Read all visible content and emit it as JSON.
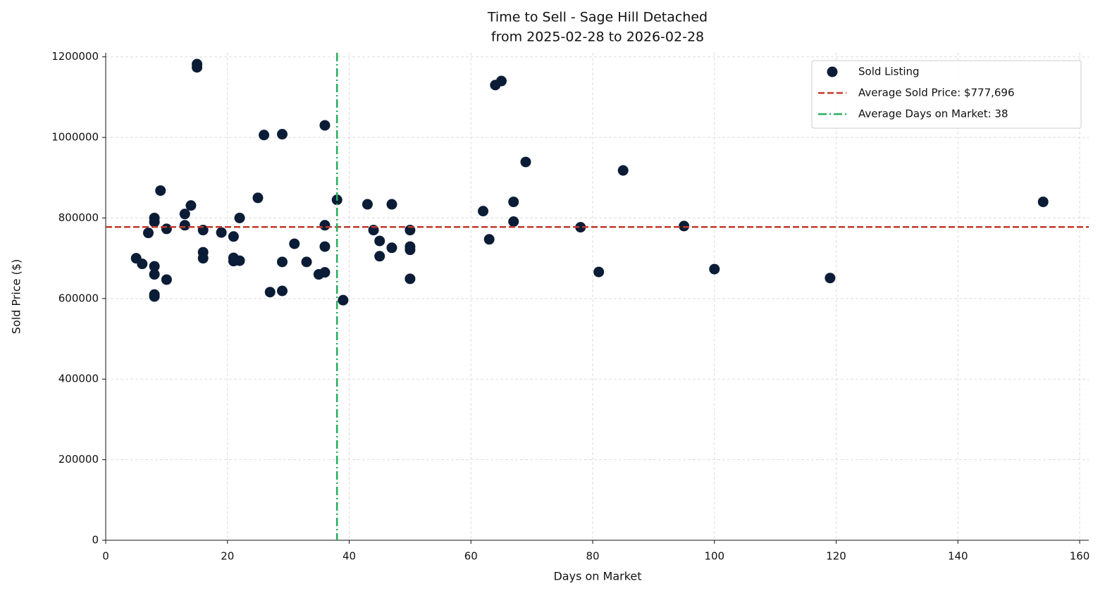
{
  "chart_data": {
    "type": "scatter",
    "title": "Time to Sell - Sage Hill Detached",
    "subtitle": "from 2025-02-28 to 2026-02-28",
    "x_label": "Days on Market",
    "y_label": "Sold Price ($)",
    "xlim": [
      0,
      161.5
    ],
    "ylim": [
      0,
      1210000
    ],
    "xticks": [
      0,
      20,
      40,
      60,
      80,
      100,
      120,
      140,
      160
    ],
    "yticks": [
      0,
      200000,
      400000,
      600000,
      800000,
      1000000,
      1200000
    ],
    "grid": true,
    "legend": "upper right",
    "series": [
      {
        "name": "Sold Listing",
        "color": "#0b1c36",
        "x": [
          5,
          6,
          7,
          8,
          8,
          8,
          8,
          8,
          8,
          9,
          10,
          10,
          13,
          13,
          14,
          15,
          15,
          16,
          16,
          16,
          19,
          21,
          21,
          21,
          22,
          22,
          25,
          26,
          27,
          29,
          29,
          29,
          31,
          33,
          35,
          36,
          36,
          36,
          36,
          38,
          39,
          43,
          44,
          45,
          45,
          47,
          47,
          50,
          50,
          50,
          50,
          62,
          63,
          64,
          65,
          67,
          67,
          69,
          78,
          81,
          85,
          95,
          100,
          119,
          154
        ],
        "values": [
          700000,
          686000,
          763000,
          800000,
          790000,
          680000,
          660000,
          610000,
          605000,
          868000,
          773000,
          647000,
          810000,
          782000,
          831000,
          1182000,
          1174000,
          770000,
          715000,
          700000,
          764000,
          754000,
          701000,
          693000,
          800000,
          694000,
          850000,
          1006000,
          616000,
          1008000,
          691000,
          619000,
          736000,
          691000,
          660000,
          1030000,
          782000,
          729000,
          665000,
          845000,
          596000,
          834000,
          770000,
          743000,
          705000,
          834000,
          726000,
          770000,
          729000,
          721000,
          649000,
          817000,
          747000,
          1130000,
          1140000,
          840000,
          791000,
          939000,
          777000,
          666000,
          918000,
          780000,
          673000,
          651000,
          840000
        ]
      }
    ],
    "average_price": 777696,
    "average_price_label": "Average Sold Price: $777,696",
    "average_price_color": "#c0392b",
    "average_days": 38,
    "average_days_label": "Average Days on Market: 38",
    "average_days_color": "#27ae60"
  }
}
